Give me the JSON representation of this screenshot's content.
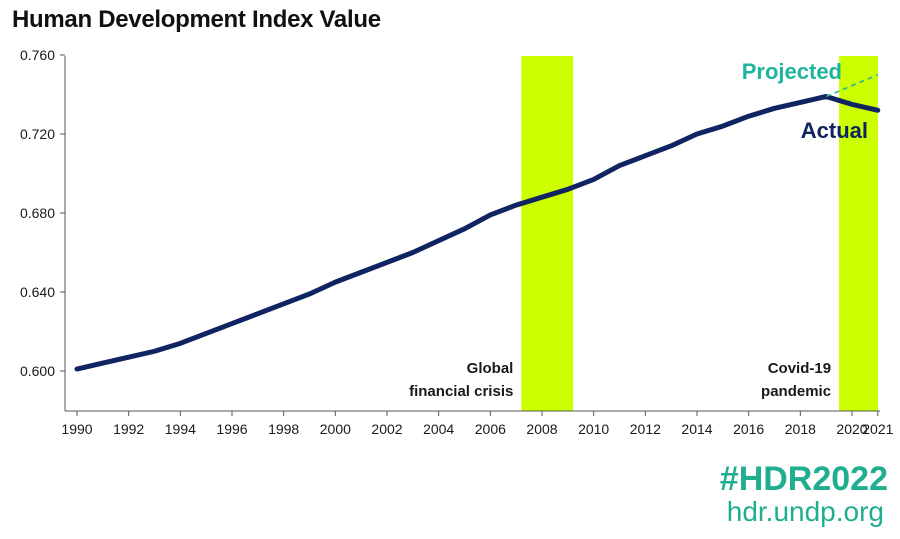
{
  "chart_data": {
    "type": "line",
    "title": "Human Development Index Value",
    "xlabel": "",
    "ylabel": "",
    "xlim": [
      1990,
      2021
    ],
    "ylim": [
      0.595,
      0.76
    ],
    "y_ticks": [
      "0.600",
      "0.640",
      "0.680",
      "0.720",
      "0.760"
    ],
    "x_ticks": [
      "1990",
      "1992",
      "1994",
      "1996",
      "1998",
      "2000",
      "2002",
      "2004",
      "2006",
      "2008",
      "2010",
      "2012",
      "2014",
      "2016",
      "2018",
      "2020",
      "2021"
    ],
    "grid": false,
    "series": [
      {
        "name": "Actual",
        "x": [
          1990,
          1991,
          1992,
          1993,
          1994,
          1995,
          1996,
          1997,
          1998,
          1999,
          2000,
          2001,
          2002,
          2003,
          2004,
          2005,
          2006,
          2007,
          2008,
          2009,
          2010,
          2011,
          2012,
          2013,
          2014,
          2015,
          2016,
          2017,
          2018,
          2019,
          2020,
          2021
        ],
        "y": [
          0.601,
          0.604,
          0.607,
          0.61,
          0.614,
          0.619,
          0.624,
          0.629,
          0.634,
          0.639,
          0.645,
          0.65,
          0.655,
          0.66,
          0.666,
          0.672,
          0.679,
          0.684,
          0.688,
          0.692,
          0.697,
          0.704,
          0.709,
          0.714,
          0.72,
          0.724,
          0.729,
          0.733,
          0.736,
          0.739,
          0.735,
          0.732
        ]
      },
      {
        "name": "Projected",
        "x": [
          2019,
          2021
        ],
        "y": [
          0.739,
          0.75
        ]
      }
    ],
    "shaded_periods": [
      {
        "label_line1": "Global",
        "label_line2": "financial crisis",
        "start": 2007.2,
        "end": 2009.2
      },
      {
        "label_line1": "Covid-19",
        "label_line2": "pandemic",
        "start": 2019.5,
        "end": 2021.5
      }
    ],
    "colors": {
      "actual": "#0f2461",
      "projected": "#1fb59c",
      "shade": "#ccff00",
      "axis": "#555555"
    }
  },
  "branding": {
    "hashtag": "#HDR2022",
    "website": "hdr.undp.org",
    "color": "#1fae8f"
  }
}
